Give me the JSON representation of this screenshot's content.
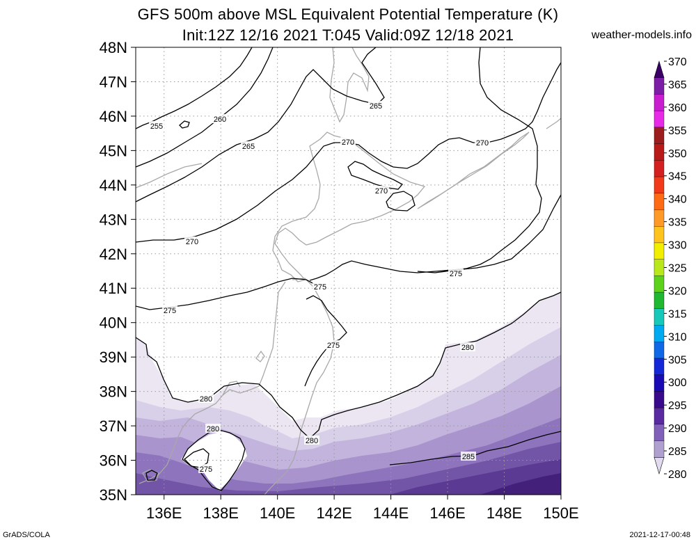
{
  "header": {
    "title": "GFS 500m above MSL Equivalent Potential Temperature (K)",
    "subtitle": "Init:12Z 12/16 2021 T:045 Valid:09Z 12/18 2021",
    "site": "weather-models.info"
  },
  "footer": {
    "left": "GrADS/COLA",
    "right": "2021-12-17-00:48"
  },
  "map": {
    "lat_labels": [
      "48N",
      "47N",
      "46N",
      "45N",
      "44N",
      "43N",
      "42N",
      "41N",
      "40N",
      "39N",
      "38N",
      "37N",
      "36N",
      "35N"
    ],
    "lon_labels": [
      "136E",
      "138E",
      "140E",
      "142E",
      "144E",
      "146E",
      "148E",
      "150E"
    ],
    "contour_labels": [
      "255",
      "260",
      "265",
      "265",
      "270",
      "270",
      "270",
      "270",
      "275",
      "275",
      "275",
      "275",
      "275",
      "280",
      "280",
      "280",
      "280",
      "285"
    ]
  },
  "colorbar": {
    "labels": [
      "370",
      "365",
      "360",
      "355",
      "350",
      "345",
      "340",
      "335",
      "330",
      "325",
      "320",
      "315",
      "310",
      "305",
      "300",
      "295",
      "290",
      "285",
      "280"
    ],
    "colors": [
      "#3a0065",
      "#7c1fa6",
      "#c81ed0",
      "#e62ae6",
      "#9b1d1d",
      "#b81a1a",
      "#d42020",
      "#f03a1a",
      "#ff6a14",
      "#ff9a28",
      "#ffc31e",
      "#f2ee00",
      "#b8e81c",
      "#5cd21a",
      "#20b830",
      "#18c8b8",
      "#00aaf0",
      "#1068e6",
      "#1428d8",
      "#1a0ab4",
      "#3a0a8c",
      "#5a2aa0",
      "#8060b8",
      "#b0a0d0",
      "#e2daee"
    ]
  }
}
